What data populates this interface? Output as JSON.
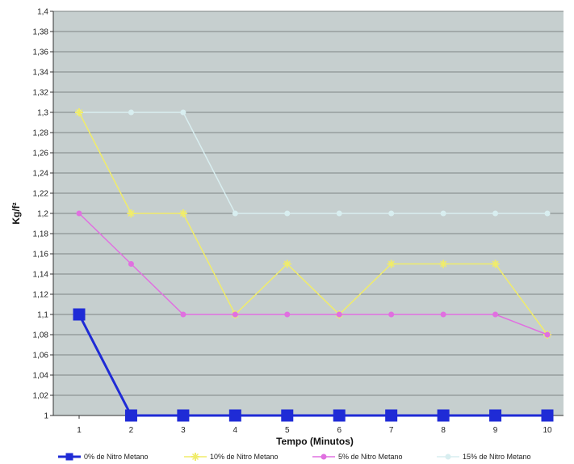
{
  "chart_data": {
    "type": "line",
    "title": "",
    "xlabel": "Tempo (Minutos)",
    "ylabel": "Kg/f²",
    "x": [
      1,
      2,
      3,
      4,
      5,
      6,
      7,
      8,
      9,
      10
    ],
    "ylim": [
      1,
      1.4
    ],
    "yticks": [
      "1",
      "1,02",
      "1,04",
      "1,06",
      "1,08",
      "1,1",
      "1,12",
      "1,14",
      "1,16",
      "1,18",
      "1,2",
      "1,22",
      "1,24",
      "1,26",
      "1,28",
      "1,3",
      "1,32",
      "1,34",
      "1,36",
      "1,38",
      "1,4"
    ],
    "grid": true,
    "legend_position": "bottom",
    "plot_background": "#c6cfcf",
    "series": [
      {
        "name": "0% de Nitro Metano",
        "color": "#1f2bd6",
        "marker": "square",
        "values": [
          1.1,
          1,
          1,
          1,
          1,
          1,
          1,
          1,
          1,
          1
        ]
      },
      {
        "name": "10% de Nitro Metano",
        "color": "#f0ec6a",
        "marker": "star",
        "values": [
          1.3,
          1.2,
          1.2,
          1.1,
          1.15,
          1.1,
          1.15,
          1.15,
          1.15,
          1.08
        ]
      },
      {
        "name": "5% de Nitro Metano",
        "color": "#e070e0",
        "marker": "circle",
        "values": [
          1.2,
          1.15,
          1.1,
          1.1,
          1.1,
          1.1,
          1.1,
          1.1,
          1.1,
          1.08
        ]
      },
      {
        "name": "15% de Nitro Metano",
        "color": "#d8eef0",
        "marker": "circle",
        "values": [
          1.3,
          1.3,
          1.3,
          1.2,
          1.2,
          1.2,
          1.2,
          1.2,
          1.2,
          1.2
        ]
      }
    ]
  }
}
